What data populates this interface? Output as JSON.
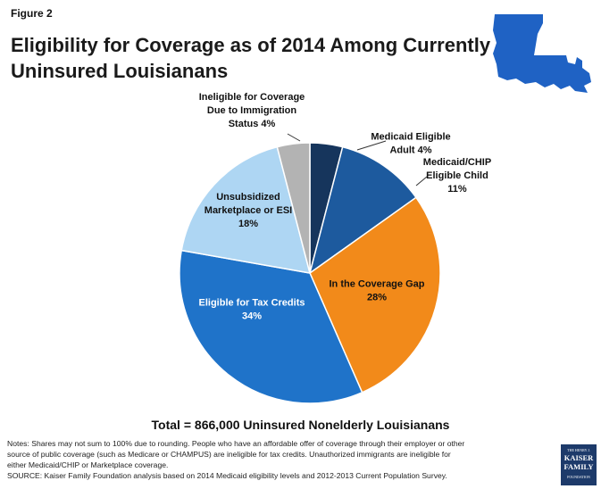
{
  "figure_label": "Figure 2",
  "title_line1": "Eligibility for Coverage as of 2014 Among Currently",
  "title_line2": "Uninsured Louisianans",
  "total_text": "Total = 866,000 Uninsured Nonelderly Louisianans",
  "notes_line1": "Notes: Shares may not sum to 100% due to rounding. People who have an affordable offer of coverage through their employer or other",
  "notes_line2": "source of public coverage (such as Medicare or CHAMPUS) are ineligible for tax credits. Unauthorized immigrants are ineligible for",
  "notes_line3": "either Medicaid/CHIP or Marketplace coverage.",
  "notes_line4": "SOURCE: Kaiser Family Foundation analysis based on 2014 Medicaid eligibility levels and 2012-2013 Current Population Survey.",
  "logo": {
    "line1": "THE HENRY J.",
    "line2": "KAISER",
    "line3": "FAMILY",
    "line4": "FOUNDATION"
  },
  "colors": {
    "state_icon": "#1f62c4",
    "logo_bg": "#1d3a6a"
  },
  "chart_data": {
    "type": "pie",
    "start_angle_deg": 0,
    "direction": "clockwise",
    "slices": [
      {
        "label_lines": [
          "Medicaid Eligible",
          "Adult 4%"
        ],
        "value": 4,
        "color": "#16355c",
        "label_color": "#111111",
        "label_outside": true
      },
      {
        "label_lines": [
          "Medicaid/CHIP",
          "Eligible Child",
          "11%"
        ],
        "value": 11,
        "color": "#1d5a9e",
        "label_color": "#111111",
        "label_outside": true
      },
      {
        "label_lines": [
          "In the Coverage Gap",
          "28%"
        ],
        "value": 28,
        "color": "#f28a1a",
        "label_color": "#111111",
        "label_outside": false
      },
      {
        "label_lines": [
          "Eligible for Tax Credits",
          "34%"
        ],
        "value": 34,
        "color": "#1f73c9",
        "label_color": "#ffffff",
        "label_outside": false
      },
      {
        "label_lines": [
          "Unsubsidized",
          "Marketplace or ESI",
          "18%"
        ],
        "value": 18,
        "color": "#aed6f3",
        "label_color": "#111111",
        "label_outside": false
      },
      {
        "label_lines": [
          "Ineligible for Coverage",
          "Due to Immigration",
          "Status 4%"
        ],
        "value": 4,
        "color": "#b3b3b3",
        "label_color": "#111111",
        "label_outside": true
      }
    ]
  }
}
